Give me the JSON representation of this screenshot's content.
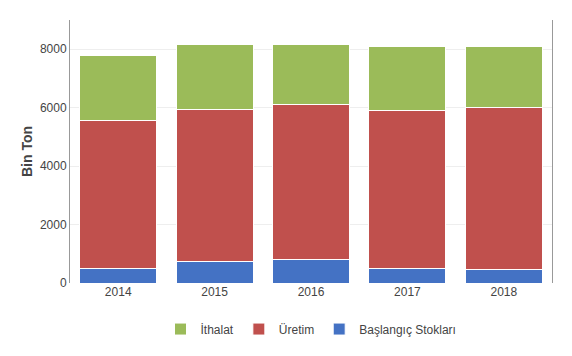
{
  "chart_data": {
    "type": "bar",
    "stacked": true,
    "categories": [
      "2014",
      "2015",
      "2016",
      "2017",
      "2018"
    ],
    "series": [
      {
        "name": "Başlangıç Stokları",
        "color": "#4472C4",
        "values": [
          500,
          750,
          800,
          500,
          450
        ]
      },
      {
        "name": "Üretim",
        "color": "#C0504D",
        "values": [
          5050,
          5200,
          5300,
          5400,
          5550
        ]
      },
      {
        "name": "İthalat",
        "color": "#9BBB59",
        "values": [
          2250,
          2200,
          2050,
          2200,
          2100
        ]
      }
    ],
    "ylabel": "Bin Ton",
    "ylim": [
      0,
      9000
    ],
    "yticks": [
      0,
      2000,
      4000,
      6000,
      8000
    ],
    "grid": true,
    "legend": "bottom"
  }
}
